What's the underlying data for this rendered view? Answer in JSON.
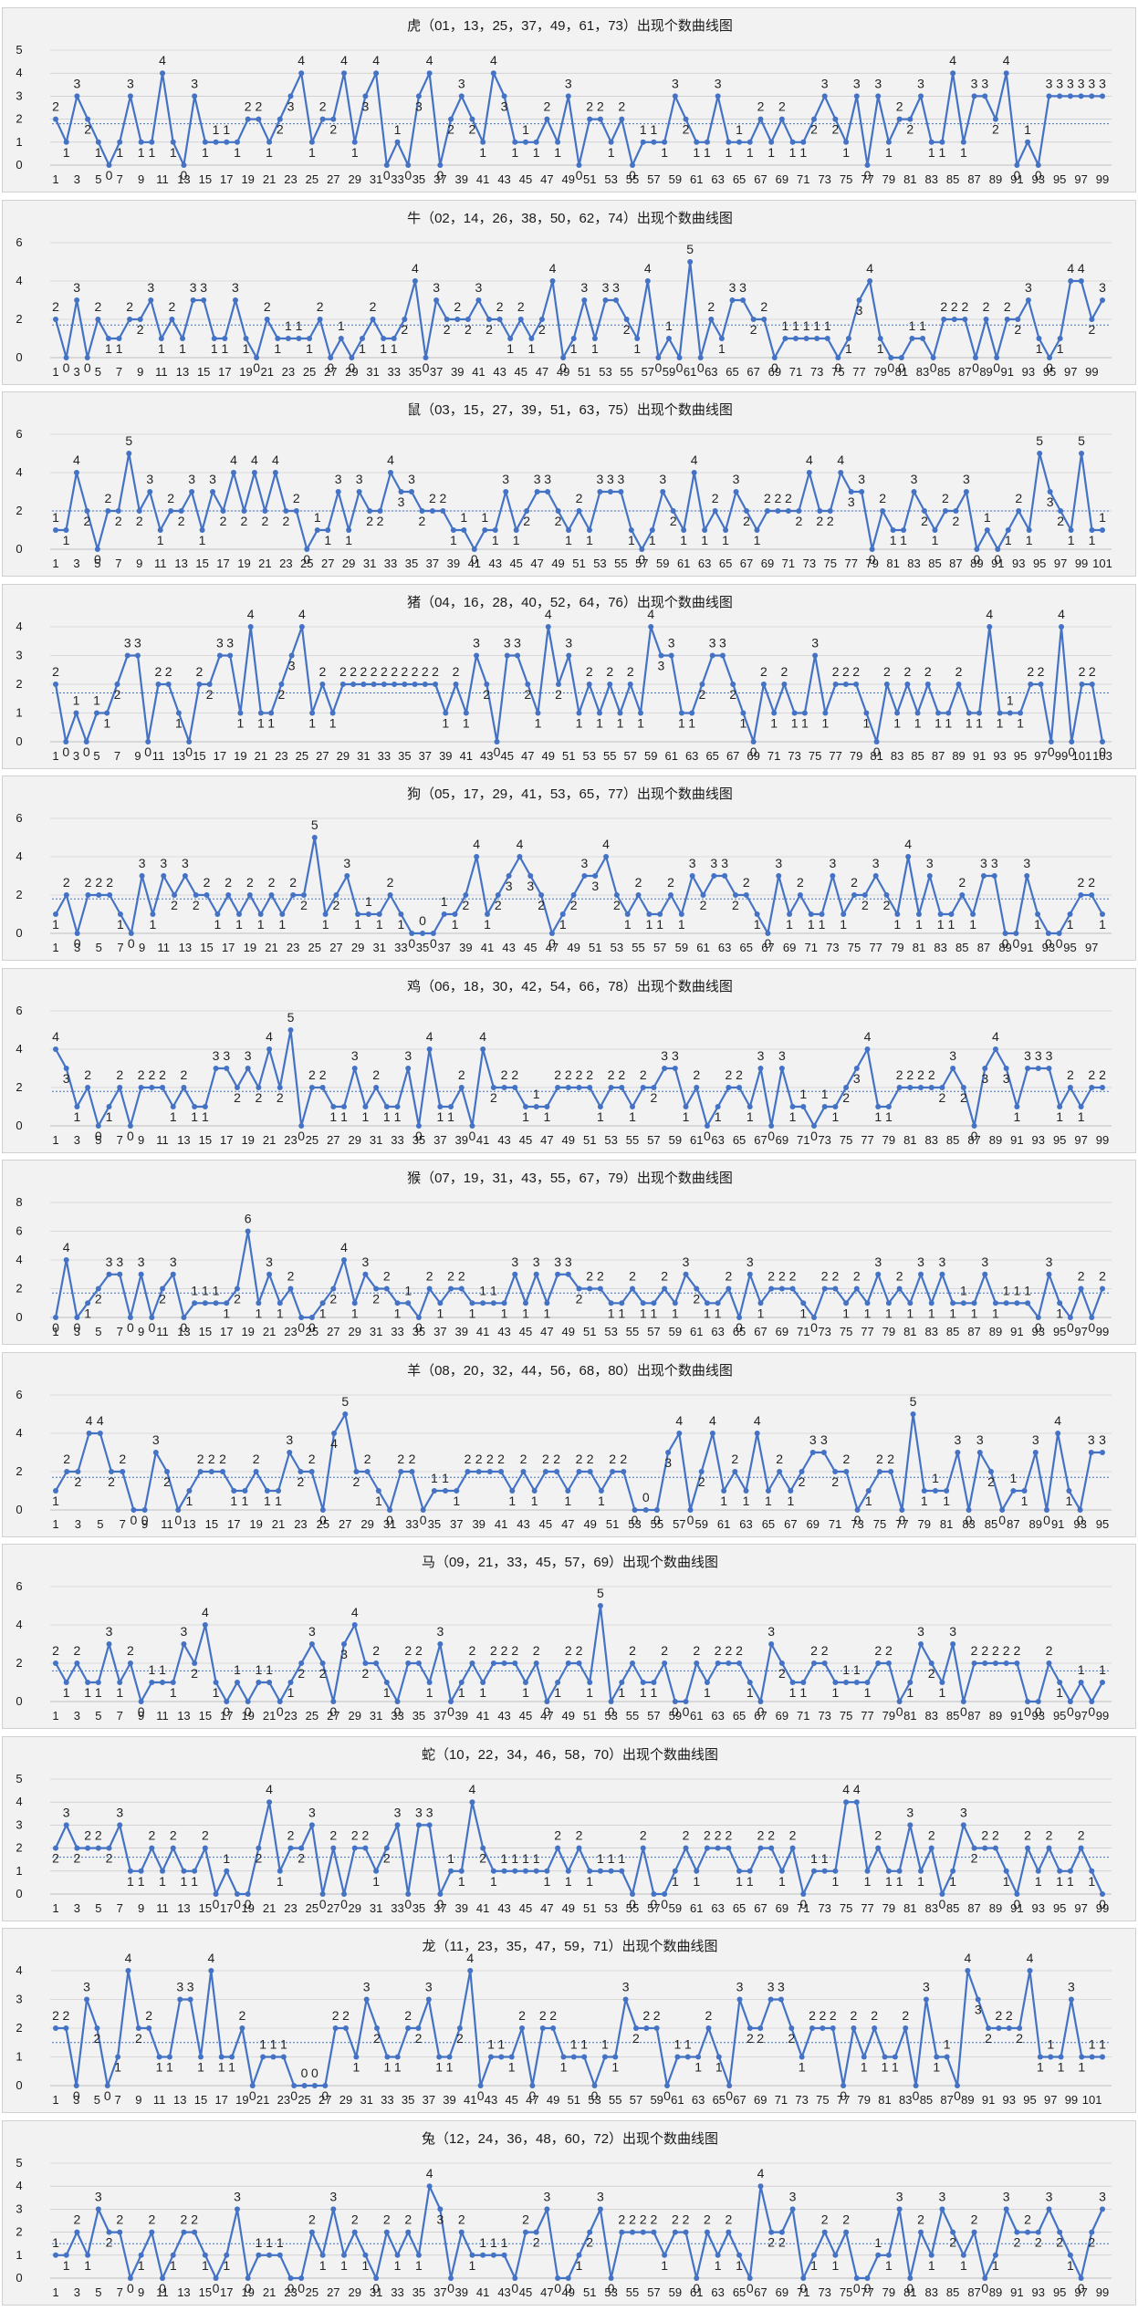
{
  "page": {
    "line_color": "#4472c4",
    "avg_color": "#4472c4",
    "panel_bg": "#f2f2f2",
    "grid_color": "#bfbfbf"
  },
  "chart_data": [
    {
      "type": "line",
      "title": "虎（01，13，25，37，49，61，73）出现个数曲线图",
      "ylim": [
        0,
        5
      ],
      "yticks": [
        0,
        1,
        2,
        3,
        4,
        5
      ],
      "average": 1.8,
      "values": [
        2,
        1,
        3,
        2,
        1,
        0,
        1,
        3,
        1,
        1,
        4,
        1,
        0,
        3,
        1,
        1,
        1,
        1,
        2,
        2,
        1,
        2,
        3,
        4,
        1,
        2,
        2,
        4,
        1,
        3,
        4,
        0,
        1,
        0,
        3,
        4,
        0,
        2,
        3,
        2,
        1,
        4,
        3,
        1,
        1,
        1,
        2,
        1,
        3,
        0,
        2,
        2,
        1,
        2,
        0,
        1,
        1,
        1,
        3,
        2,
        1,
        1,
        3,
        1,
        1,
        1,
        2,
        1,
        2,
        1,
        1,
        2,
        3,
        2,
        1,
        3,
        0,
        3,
        1,
        2,
        2,
        3,
        1,
        1,
        4,
        1,
        3,
        3,
        2,
        4,
        0,
        1,
        0,
        3,
        3,
        3,
        3,
        3,
        3
      ]
    },
    {
      "type": "line",
      "title": "牛（02，14，26，38，50，62，74）出现个数曲线图",
      "ylim": [
        0,
        6
      ],
      "yticks": [
        0,
        2,
        4,
        6
      ],
      "average": 1.7,
      "values": [
        2,
        0,
        3,
        0,
        2,
        1,
        1,
        2,
        2,
        3,
        1,
        2,
        1,
        3,
        3,
        1,
        1,
        3,
        1,
        0,
        2,
        1,
        1,
        1,
        1,
        2,
        0,
        1,
        0,
        1,
        2,
        1,
        1,
        2,
        4,
        0,
        3,
        2,
        2,
        2,
        3,
        2,
        2,
        1,
        2,
        1,
        2,
        4,
        0,
        1,
        3,
        1,
        3,
        3,
        2,
        1,
        4,
        0,
        1,
        0,
        5,
        0,
        2,
        1,
        3,
        3,
        2,
        2,
        0,
        1,
        1,
        1,
        1,
        1,
        0,
        1,
        3,
        4,
        1,
        0,
        0,
        1,
        1,
        0,
        2,
        2,
        2,
        0,
        2,
        0,
        2,
        2,
        3,
        1,
        0,
        1,
        4,
        4,
        2,
        3
      ]
    },
    {
      "type": "line",
      "title": "鼠（03，15，27，39，51，63，75）出现个数曲线图",
      "ylim": [
        0,
        6
      ],
      "yticks": [
        0,
        2,
        4,
        6
      ],
      "average": 2.0,
      "values": [
        1,
        1,
        4,
        2,
        0,
        2,
        2,
        5,
        2,
        3,
        1,
        2,
        2,
        3,
        1,
        3,
        2,
        4,
        2,
        4,
        2,
        4,
        2,
        2,
        0,
        1,
        1,
        3,
        1,
        3,
        2,
        2,
        4,
        3,
        3,
        2,
        2,
        2,
        1,
        1,
        0,
        1,
        1,
        3,
        1,
        2,
        3,
        3,
        2,
        1,
        2,
        1,
        3,
        3,
        3,
        1,
        0,
        1,
        3,
        2,
        1,
        4,
        1,
        2,
        1,
        3,
        2,
        1,
        2,
        2,
        2,
        2,
        4,
        2,
        2,
        4,
        3,
        3,
        0,
        2,
        1,
        1,
        3,
        2,
        1,
        2,
        2,
        3,
        0,
        1,
        0,
        1,
        2,
        1,
        5,
        3,
        2,
        1,
        5,
        1,
        1
      ]
    },
    {
      "type": "line",
      "title": "猪（04，16，28，40，52，64，76）出现个数曲线图",
      "ylim": [
        0,
        4
      ],
      "yticks": [
        0,
        1,
        2,
        3,
        4
      ],
      "average": 1.7,
      "values": [
        2,
        0,
        1,
        0,
        1,
        1,
        2,
        3,
        3,
        0,
        2,
        2,
        1,
        0,
        2,
        2,
        3,
        3,
        1,
        4,
        1,
        1,
        2,
        3,
        4,
        1,
        2,
        1,
        2,
        2,
        2,
        2,
        2,
        2,
        2,
        2,
        2,
        2,
        1,
        2,
        1,
        3,
        2,
        0,
        3,
        3,
        2,
        1,
        4,
        2,
        3,
        1,
        2,
        1,
        2,
        1,
        2,
        1,
        4,
        3,
        3,
        1,
        1,
        2,
        3,
        3,
        2,
        1,
        0,
        2,
        1,
        2,
        1,
        1,
        3,
        1,
        2,
        2,
        2,
        1,
        0,
        2,
        1,
        2,
        1,
        2,
        1,
        1,
        2,
        1,
        1,
        4,
        1,
        1,
        1,
        2,
        2,
        0,
        4,
        0,
        2,
        2,
        0
      ]
    },
    {
      "type": "line",
      "title": "狗（05，17，29，41，53，65，77）出现个数曲线图",
      "ylim": [
        0,
        6
      ],
      "yticks": [
        0,
        2,
        4,
        6
      ],
      "average": 1.8,
      "values": [
        1,
        2,
        0,
        2,
        2,
        2,
        1,
        0,
        3,
        1,
        3,
        2,
        3,
        2,
        2,
        1,
        2,
        1,
        2,
        1,
        2,
        1,
        2,
        2,
        5,
        1,
        2,
        3,
        1,
        1,
        1,
        2,
        1,
        0,
        0,
        0,
        1,
        1,
        2,
        4,
        1,
        2,
        3,
        4,
        3,
        2,
        0,
        1,
        2,
        3,
        3,
        4,
        2,
        1,
        2,
        1,
        1,
        2,
        1,
        3,
        2,
        3,
        3,
        2,
        2,
        1,
        0,
        3,
        1,
        2,
        1,
        1,
        3,
        1,
        2,
        2,
        3,
        2,
        1,
        4,
        1,
        3,
        1,
        1,
        2,
        1,
        3,
        3,
        0,
        0,
        3,
        1,
        0,
        0,
        1,
        2,
        2,
        1
      ]
    },
    {
      "type": "line",
      "title": "鸡（06，18，30，42，54，66，78）出现个数曲线图",
      "ylim": [
        0,
        6
      ],
      "yticks": [
        0,
        2,
        4,
        6
      ],
      "average": 1.8,
      "values": [
        4,
        3,
        1,
        2,
        0,
        1,
        2,
        0,
        2,
        2,
        2,
        1,
        2,
        1,
        1,
        3,
        3,
        2,
        3,
        2,
        4,
        2,
        5,
        0,
        2,
        2,
        1,
        1,
        3,
        1,
        2,
        1,
        1,
        3,
        0,
        4,
        1,
        1,
        2,
        0,
        4,
        2,
        2,
        2,
        1,
        1,
        1,
        2,
        2,
        2,
        2,
        1,
        2,
        2,
        1,
        2,
        2,
        3,
        3,
        1,
        2,
        0,
        1,
        2,
        2,
        1,
        3,
        0,
        3,
        1,
        1,
        0,
        1,
        1,
        2,
        3,
        4,
        1,
        1,
        2,
        2,
        2,
        2,
        2,
        3,
        2,
        0,
        3,
        4,
        3,
        1,
        3,
        3,
        3,
        1,
        2,
        1,
        2,
        2
      ]
    },
    {
      "type": "line",
      "title": "猴（07，19，31，43，55，67，79）出现个数曲线图",
      "ylim": [
        0,
        8
      ],
      "yticks": [
        0,
        2,
        4,
        6,
        8
      ],
      "average": 1.7,
      "values": [
        0,
        4,
        0,
        1,
        2,
        3,
        3,
        0,
        3,
        0,
        2,
        3,
        0,
        1,
        1,
        1,
        1,
        2,
        6,
        1,
        3,
        1,
        2,
        0,
        0,
        1,
        2,
        4,
        1,
        3,
        2,
        2,
        1,
        1,
        0,
        2,
        1,
        2,
        2,
        1,
        1,
        1,
        1,
        3,
        1,
        3,
        1,
        3,
        3,
        2,
        2,
        2,
        1,
        1,
        2,
        1,
        1,
        2,
        1,
        3,
        2,
        1,
        1,
        2,
        0,
        3,
        1,
        2,
        2,
        2,
        1,
        0,
        2,
        2,
        1,
        2,
        1,
        3,
        1,
        2,
        1,
        3,
        1,
        3,
        1,
        1,
        1,
        3,
        1,
        1,
        1,
        1,
        0,
        3,
        1,
        0,
        2,
        0,
        2
      ]
    },
    {
      "type": "line",
      "title": "羊（08，20，32，44，56，68，80）出现个数曲线图",
      "ylim": [
        0,
        6
      ],
      "yticks": [
        0,
        2,
        4,
        6
      ],
      "average": 1.7,
      "values": [
        1,
        2,
        2,
        4,
        4,
        2,
        2,
        0,
        0,
        3,
        2,
        0,
        1,
        2,
        2,
        2,
        1,
        1,
        2,
        1,
        1,
        3,
        2,
        2,
        0,
        4,
        5,
        2,
        2,
        1,
        0,
        2,
        2,
        0,
        1,
        1,
        1,
        2,
        2,
        2,
        2,
        1,
        2,
        1,
        2,
        2,
        1,
        2,
        2,
        1,
        2,
        2,
        0,
        0,
        0,
        3,
        4,
        0,
        2,
        4,
        1,
        2,
        1,
        4,
        1,
        2,
        1,
        2,
        3,
        3,
        2,
        2,
        0,
        1,
        2,
        2,
        0,
        5,
        1,
        1,
        1,
        3,
        0,
        3,
        2,
        0,
        1,
        1,
        3,
        0,
        4,
        1,
        0,
        3,
        3
      ]
    },
    {
      "type": "line",
      "title": "马（09，21，33，45，57，69）出现个数曲线图",
      "ylim": [
        0,
        6
      ],
      "yticks": [
        0,
        2,
        4,
        6
      ],
      "average": 1.6,
      "values": [
        2,
        1,
        2,
        1,
        1,
        3,
        1,
        2,
        0,
        1,
        1,
        1,
        3,
        2,
        4,
        1,
        0,
        1,
        0,
        1,
        1,
        0,
        1,
        2,
        3,
        2,
        0,
        3,
        4,
        2,
        2,
        1,
        0,
        2,
        2,
        1,
        3,
        0,
        1,
        2,
        1,
        2,
        2,
        2,
        1,
        2,
        0,
        1,
        2,
        2,
        1,
        5,
        0,
        1,
        2,
        1,
        1,
        2,
        0,
        0,
        2,
        1,
        2,
        2,
        2,
        1,
        0,
        3,
        2,
        1,
        1,
        2,
        2,
        1,
        1,
        1,
        1,
        2,
        2,
        0,
        1,
        3,
        2,
        1,
        3,
        0,
        2,
        2,
        2,
        2,
        2,
        0,
        0,
        2,
        1,
        0,
        1,
        0,
        1
      ]
    },
    {
      "type": "line",
      "title": "蛇（10，22，34，46，58，70）出现个数曲线图",
      "ylim": [
        0,
        5
      ],
      "yticks": [
        0,
        1,
        2,
        3,
        4,
        5
      ],
      "average": 1.6,
      "values": [
        2,
        3,
        2,
        2,
        2,
        2,
        3,
        1,
        1,
        2,
        1,
        2,
        1,
        1,
        2,
        0,
        1,
        0,
        0,
        2,
        4,
        1,
        2,
        2,
        3,
        0,
        2,
        0,
        2,
        2,
        1,
        2,
        3,
        0,
        3,
        3,
        0,
        1,
        1,
        4,
        2,
        1,
        1,
        1,
        1,
        1,
        1,
        2,
        1,
        2,
        1,
        1,
        1,
        1,
        0,
        2,
        0,
        0,
        1,
        2,
        1,
        2,
        2,
        2,
        1,
        1,
        2,
        2,
        1,
        2,
        0,
        1,
        1,
        1,
        4,
        4,
        1,
        2,
        1,
        1,
        3,
        1,
        2,
        0,
        1,
        3,
        2,
        2,
        2,
        1,
        0,
        2,
        1,
        2,
        1,
        1,
        2,
        1,
        0
      ]
    },
    {
      "type": "line",
      "title": "龙（11，23，35，47，59，71）出现个数曲线图",
      "ylim": [
        0,
        4
      ],
      "yticks": [
        0,
        1,
        2,
        3,
        4
      ],
      "average": 1.5,
      "values": [
        2,
        2,
        0,
        3,
        2,
        0,
        1,
        4,
        2,
        2,
        1,
        1,
        3,
        3,
        1,
        4,
        1,
        1,
        2,
        0,
        1,
        1,
        1,
        0,
        0,
        0,
        0,
        2,
        2,
        1,
        3,
        2,
        1,
        1,
        2,
        2,
        3,
        1,
        1,
        2,
        4,
        0,
        1,
        1,
        1,
        2,
        0,
        2,
        2,
        1,
        1,
        1,
        0,
        1,
        1,
        3,
        2,
        2,
        2,
        0,
        1,
        1,
        1,
        2,
        1,
        0,
        3,
        2,
        2,
        3,
        3,
        2,
        1,
        2,
        2,
        2,
        0,
        2,
        1,
        2,
        1,
        1,
        2,
        0,
        3,
        1,
        1,
        0,
        4,
        3,
        2,
        2,
        2,
        2,
        4,
        1,
        1,
        1,
        3,
        1,
        1,
        1
      ]
    },
    {
      "type": "line",
      "title": "兔（12，24，36，48，60，72）出现个数曲线图",
      "ylim": [
        0,
        5
      ],
      "yticks": [
        0,
        1,
        2,
        3,
        4,
        5
      ],
      "average": 1.5,
      "values": [
        1,
        1,
        2,
        1,
        3,
        2,
        2,
        0,
        1,
        2,
        0,
        1,
        2,
        2,
        1,
        0,
        1,
        3,
        0,
        1,
        1,
        1,
        0,
        0,
        2,
        1,
        3,
        1,
        2,
        1,
        0,
        2,
        1,
        2,
        1,
        4,
        3,
        0,
        2,
        1,
        1,
        1,
        1,
        0,
        2,
        2,
        3,
        0,
        0,
        1,
        2,
        3,
        0,
        2,
        2,
        2,
        2,
        1,
        2,
        2,
        0,
        2,
        1,
        2,
        1,
        0,
        4,
        2,
        2,
        3,
        0,
        1,
        2,
        1,
        2,
        0,
        0,
        1,
        1,
        3,
        0,
        2,
        1,
        3,
        2,
        1,
        2,
        0,
        1,
        3,
        2,
        2,
        2,
        3,
        2,
        1,
        0,
        2,
        3
      ]
    }
  ]
}
